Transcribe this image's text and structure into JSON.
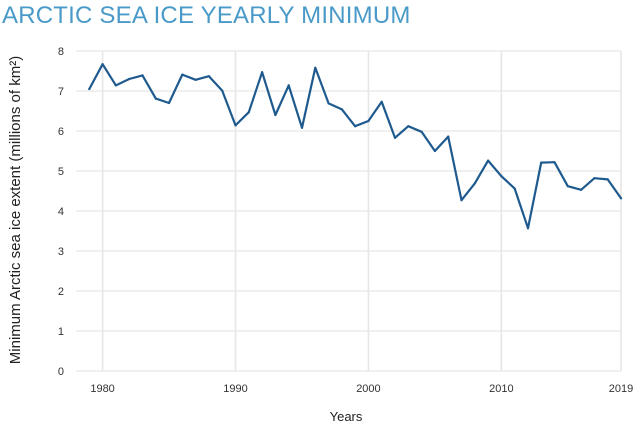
{
  "colors": {
    "title": "#4a9ac9",
    "line": "#1f5a8f",
    "grid": "#e6e6e6"
  },
  "chart_data": {
    "type": "line",
    "title": "ARCTIC SEA ICE YEARLY MINIMUM",
    "xlabel": "Years",
    "ylabel": "Minimum Arctic sea ice extent (millions of km²)",
    "xlim": [
      1978,
      2019
    ],
    "ylim": [
      0,
      8
    ],
    "xticks": [
      1980,
      1990,
      2000,
      2010,
      2019
    ],
    "yticks": [
      0,
      1,
      2,
      3,
      4,
      5,
      6,
      7,
      8
    ],
    "grid": true,
    "x": [
      1979,
      1980,
      1981,
      1982,
      1983,
      1984,
      1985,
      1986,
      1987,
      1988,
      1989,
      1990,
      1991,
      1992,
      1993,
      1994,
      1995,
      1996,
      1997,
      1998,
      1999,
      2000,
      2001,
      2002,
      2003,
      2004,
      2005,
      2006,
      2007,
      2008,
      2009,
      2010,
      2011,
      2012,
      2013,
      2014,
      2015,
      2016,
      2017,
      2018,
      2019
    ],
    "series": [
      {
        "values": [
          7.05,
          7.67,
          7.14,
          7.3,
          7.39,
          6.81,
          6.7,
          7.41,
          7.28,
          7.37,
          7.01,
          6.14,
          6.47,
          7.47,
          6.4,
          7.14,
          6.08,
          7.58,
          6.69,
          6.54,
          6.12,
          6.25,
          6.73,
          5.83,
          6.12,
          5.98,
          5.5,
          5.86,
          4.27,
          4.69,
          5.26,
          4.87,
          4.56,
          3.57,
          5.21,
          5.22,
          4.62,
          4.53,
          4.82,
          4.79,
          4.32
        ]
      }
    ]
  }
}
